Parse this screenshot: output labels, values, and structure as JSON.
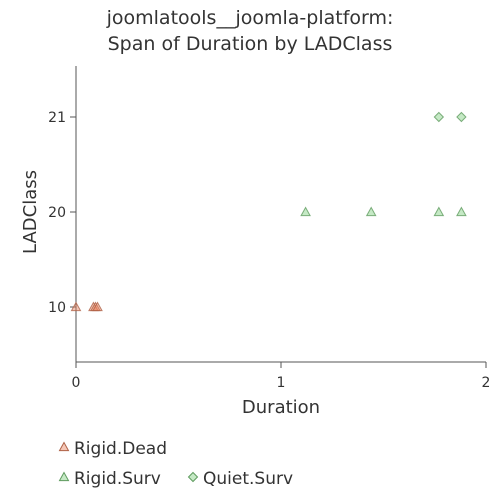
{
  "chart_data": {
    "type": "scatter",
    "title": [
      "joomlatools__joomla-platform:",
      "Span of Duration by LADClass"
    ],
    "xlabel": "Duration",
    "ylabel": "LADClass",
    "xlim": [
      0,
      2
    ],
    "x_ticks": [
      0,
      1,
      2
    ],
    "y_ticks": [
      10,
      20,
      21
    ],
    "y_axis_range": [
      5,
      26
    ],
    "y_positions_note": "categorical",
    "legend_position": "bottom-left",
    "series": [
      {
        "name": "Rigid.Dead",
        "marker": "triangle",
        "color": "#e8825f",
        "points": [
          {
            "x": 0.0,
            "y": 10
          },
          {
            "x": 0.085,
            "y": 10
          },
          {
            "x": 0.095,
            "y": 10
          },
          {
            "x": 0.105,
            "y": 10
          }
        ]
      },
      {
        "name": "Rigid.Surv",
        "marker": "triangle",
        "color": "#7fce7f",
        "points": [
          {
            "x": 1.12,
            "y": 20
          },
          {
            "x": 1.44,
            "y": 20
          },
          {
            "x": 1.77,
            "y": 20
          },
          {
            "x": 1.88,
            "y": 20
          }
        ]
      },
      {
        "name": "Quiet.Surv",
        "marker": "diamond",
        "color": "#7fce7f",
        "points": [
          {
            "x": 1.77,
            "y": 21
          },
          {
            "x": 1.88,
            "y": 21
          }
        ]
      }
    ]
  }
}
